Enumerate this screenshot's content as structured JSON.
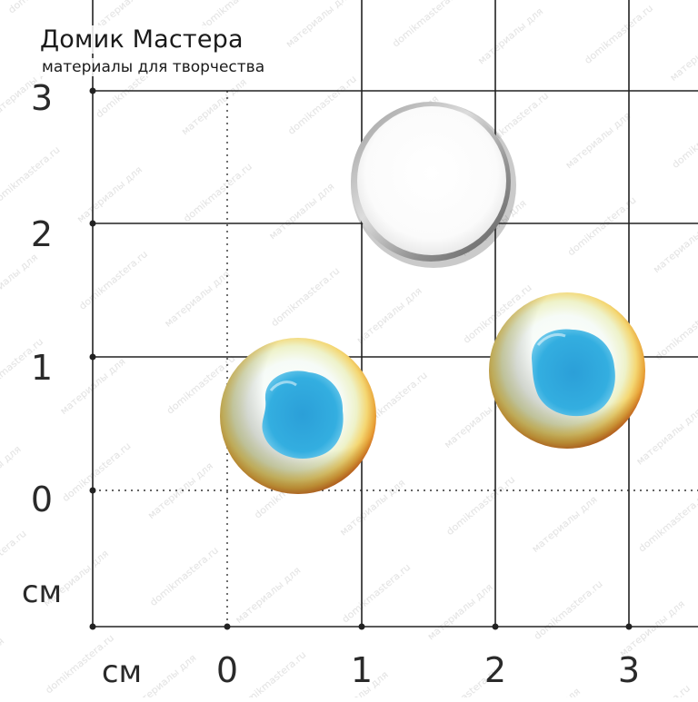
{
  "brand": {
    "title": "Домик Мастера",
    "subtitle": "материалы для творчества",
    "watermark": "domikmastera.ru · материалы для творчества · домик мастера"
  },
  "ruler": {
    "unit_y": "см",
    "unit_x": "см",
    "y_ticks": [
      "0",
      "1",
      "2",
      "3"
    ],
    "x_ticks": [
      "0",
      "1",
      "2",
      "3"
    ]
  },
  "colors": {
    "grid": "#222222",
    "background": "#ffffff",
    "cabochon_blue": "#2aa6dc",
    "cabochon_rim_orange": "#e8862a",
    "cabochon_rim_yellow": "#f3d774",
    "bezel_silver": "#b9b9b9"
  },
  "objects": [
    "round-cabochon-back",
    "round-cabochon-eye",
    "round-cabochon-eye"
  ]
}
